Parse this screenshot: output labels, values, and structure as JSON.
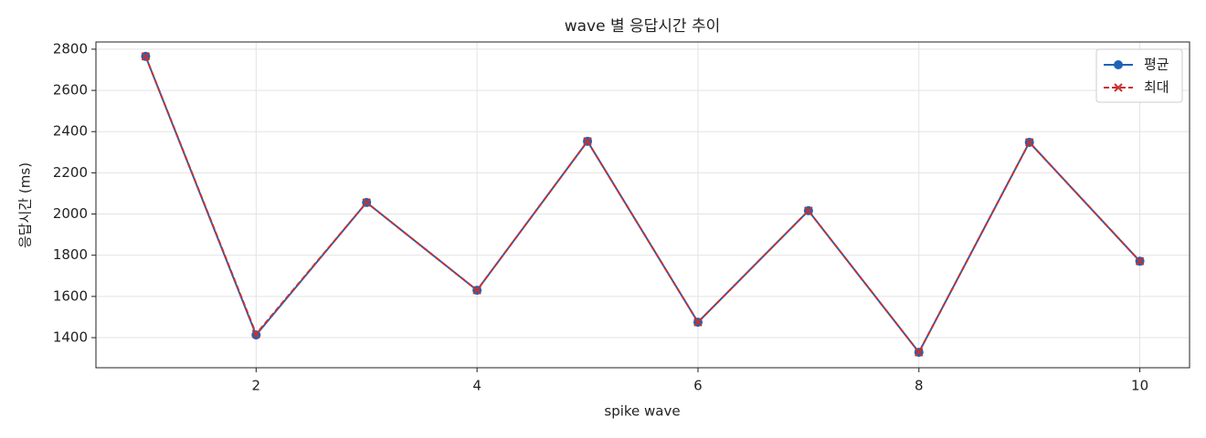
{
  "chart_data": {
    "type": "line",
    "title": "wave 별 응답시간 추이",
    "xlabel": "spike wave",
    "ylabel": "응답시간 (ms)",
    "x": [
      1,
      2,
      3,
      4,
      5,
      6,
      7,
      8,
      9,
      10
    ],
    "series": [
      {
        "name": "평균",
        "color": "#1f63b8",
        "marker": "circle",
        "linestyle": "solid",
        "values": [
          2765,
          1413,
          2056,
          1630,
          2353,
          1475,
          2016,
          1329,
          2348,
          1771
        ]
      },
      {
        "name": "최대",
        "color": "#c8312f",
        "marker": "x",
        "linestyle": "dashed",
        "values": [
          2765,
          1418,
          2056,
          1630,
          2353,
          1475,
          2016,
          1329,
          2348,
          1771
        ]
      }
    ],
    "xlim": [
      0.55,
      10.45
    ],
    "xticks": [
      2,
      4,
      6,
      8,
      10
    ],
    "ylim": [
      1254,
      2835
    ],
    "yticks": [
      1400,
      1600,
      1800,
      2000,
      2200,
      2400,
      2600,
      2800
    ],
    "grid": true,
    "legend": "upper right"
  }
}
